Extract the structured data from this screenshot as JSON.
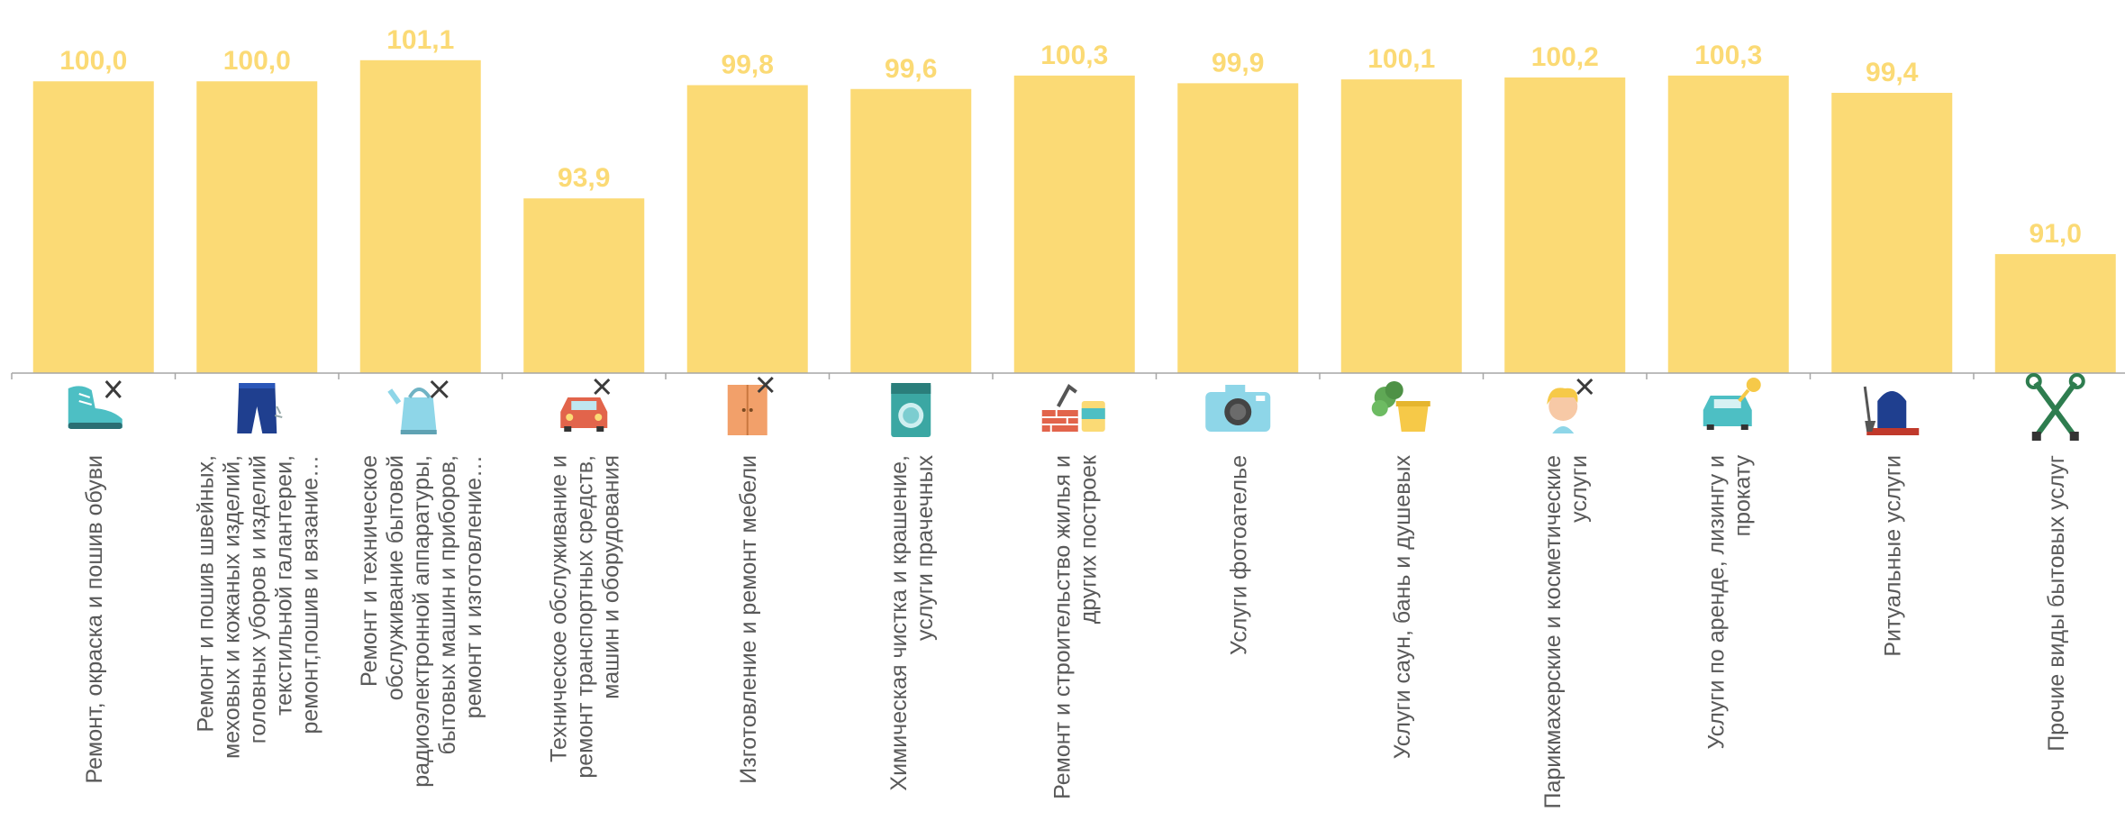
{
  "chart_data": {
    "type": "bar",
    "title": "",
    "xlabel": "",
    "ylabel": "",
    "ylim": [
      84.8,
      102.1
    ],
    "grid": false,
    "legend": "none",
    "bar_color": "#FBDA75",
    "label_color": "#FBDA75",
    "axis_color": "#A6A6A6",
    "categories": [
      {
        "label": "Ремонт, окраска и пошив обуви",
        "icon": "shoe-icon",
        "value": 100.0,
        "value_label": "100,0",
        "lines": [
          "Ремонт, окраска и пошив обуви"
        ]
      },
      {
        "label": "Ремонт и пошив швейных, меховых и кожаных изделий, головных уборов и изделий текстильной галантереи, ремонт,пошив и вязание…",
        "icon": "jeans-icon",
        "value": 100.0,
        "value_label": "100,0",
        "lines": [
          "Ремонт и пошив швейных,",
          "меховых и кожаных изделий,",
          "головных уборов и изделий",
          "текстильной галантереи,",
          "ремонт,пошив и вязание…"
        ]
      },
      {
        "label": "Ремонт и техническое обслуживание бытовой радиоэлектронной аппаратуры, бытовых машин и приборов, ремонт и изготовление…",
        "icon": "kettle-icon",
        "value": 101.1,
        "value_label": "101,1",
        "lines": [
          "Ремонт и техническое",
          "обслуживание бытовой",
          "радиоэлектронной аппаратуры,",
          "бытовых машин и приборов,",
          "ремонт и изготовление…"
        ]
      },
      {
        "label": "Техническое обслуживание и ремонт транспортных средств, машин и оборудования",
        "icon": "car-icon",
        "value": 93.9,
        "value_label": "93,9",
        "lines": [
          "Техническое обслуживание и",
          "ремонт транспортных средств,",
          "машин и оборудования"
        ]
      },
      {
        "label": "Изготовление и ремонт мебели",
        "icon": "wardrobe-icon",
        "value": 99.8,
        "value_label": "99,8",
        "lines": [
          "Изготовление и ремонт мебели"
        ]
      },
      {
        "label": "Химическая чистка и крашение, услуги прачечных",
        "icon": "washing-machine-icon",
        "value": 99.6,
        "value_label": "99,6",
        "lines": [
          "Химическая чистка и крашение,",
          "услуги прачечных"
        ]
      },
      {
        "label": "Ремонт и строительство жилья и других построек",
        "icon": "bricks-paint-icon",
        "value": 100.3,
        "value_label": "100,3",
        "lines": [
          "Ремонт и строительство жилья и",
          "других построек"
        ]
      },
      {
        "label": "Услуги фотоателье",
        "icon": "camera-icon",
        "value": 99.9,
        "value_label": "99,9",
        "lines": [
          "Услуги фотоателье"
        ]
      },
      {
        "label": "Услуги саун, бань и душевых",
        "icon": "sauna-bucket-icon",
        "value": 100.1,
        "value_label": "100,1",
        "lines": [
          "Услуги саун, бань и душевых"
        ]
      },
      {
        "label": "Парикмахерские и косметические услуги",
        "icon": "hairdresser-icon",
        "value": 100.2,
        "value_label": "100,2",
        "lines": [
          "Парикмахерские и косметические",
          "услуги"
        ]
      },
      {
        "label": "Услуги по аренде, лизингу и прокату",
        "icon": "car-rental-icon",
        "value": 100.3,
        "value_label": "100,3",
        "lines": [
          "Услуги по аренде, лизингу и",
          "прокату"
        ]
      },
      {
        "label": "Ритуальные услуги",
        "icon": "gravestone-icon",
        "value": 99.4,
        "value_label": "99,4",
        "lines": [
          "Ритуальные услуги"
        ]
      },
      {
        "label": "Прочие виды бытовых услуг",
        "icon": "tools-icon",
        "value": 91.0,
        "value_label": "91,0",
        "lines": [
          "Прочие виды бытовых услуг"
        ]
      }
    ]
  }
}
